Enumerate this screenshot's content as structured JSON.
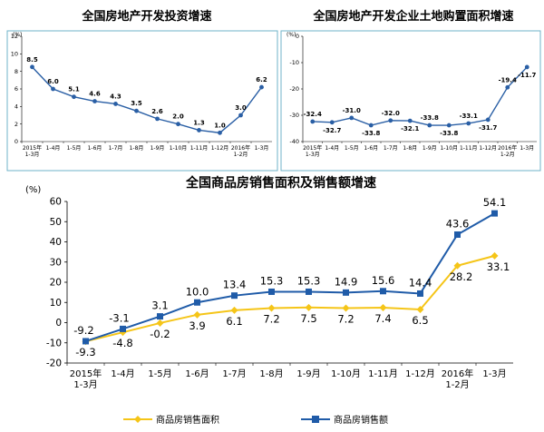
{
  "chart_data": [
    {
      "type": "line",
      "title": "全国房地产开发投资增速",
      "unit": "(%)",
      "categories": [
        "2015年 1-3月",
        "1-4月",
        "1-5月",
        "1-6月",
        "1-7月",
        "1-8月",
        "1-9月",
        "1-10月",
        "1-11月",
        "1-12月",
        "2016年 1-2月",
        "1-3月"
      ],
      "series": [
        {
          "values": [
            8.5,
            6.0,
            5.1,
            4.6,
            4.3,
            3.5,
            2.6,
            2.0,
            1.3,
            1.0,
            3.0,
            6.2
          ]
        }
      ],
      "ylim": [
        0,
        12
      ],
      "yticks": [
        0,
        2,
        4,
        6,
        8,
        10,
        12
      ],
      "grid": false,
      "colors": {
        "line": "#2a5fa5",
        "marker": "#2a5fa5",
        "frame": "#6fb3c8"
      }
    },
    {
      "type": "line",
      "title": "全国房地产开发企业土地购置面积增速",
      "unit": "(%)",
      "categories": [
        "2015年 1-3月",
        "1-4月",
        "1-5月",
        "1-6月",
        "1-7月",
        "1-8月",
        "1-9月",
        "1-10月",
        "1-11月",
        "1-12月",
        "2016年 1-2月",
        "1-3月"
      ],
      "series": [
        {
          "values": [
            -32.4,
            -32.7,
            -31.0,
            -33.8,
            -32.0,
            -32.1,
            -33.8,
            -33.8,
            -33.1,
            -31.7,
            -19.4,
            -11.7
          ]
        }
      ],
      "ylim": [
        -40,
        0
      ],
      "yticks": [
        -40,
        -30,
        -20,
        -10,
        0
      ],
      "grid": false,
      "colors": {
        "line": "#2a5fa5",
        "marker": "#2a5fa5",
        "frame": "#6fb3c8"
      }
    },
    {
      "type": "line",
      "title": "全国商品房销售面积及销售额增速",
      "unit": "(%)",
      "categories": [
        "2015年 1-3月",
        "1-4月",
        "1-5月",
        "1-6月",
        "1-7月",
        "1-8月",
        "1-9月",
        "1-10月",
        "1-11月",
        "1-12月",
        "2016年 1-2月",
        "1-3月"
      ],
      "series": [
        {
          "name": "商品房销售面积",
          "values": [
            -9.3,
            -4.8,
            -0.2,
            3.9,
            6.1,
            7.2,
            7.5,
            7.2,
            7.4,
            6.5,
            28.2,
            33.1
          ],
          "color": "#f5c518"
        },
        {
          "name": "商品房销售额",
          "values": [
            -9.2,
            -3.1,
            3.1,
            10.0,
            13.4,
            15.3,
            15.3,
            14.9,
            15.6,
            14.4,
            43.6,
            54.1
          ],
          "color": "#1f5ba8"
        }
      ],
      "ylim": [
        -20,
        60
      ],
      "yticks": [
        -20,
        -10,
        0,
        10,
        20,
        30,
        40,
        50,
        60
      ],
      "grid": false,
      "legend": "bottom"
    }
  ]
}
